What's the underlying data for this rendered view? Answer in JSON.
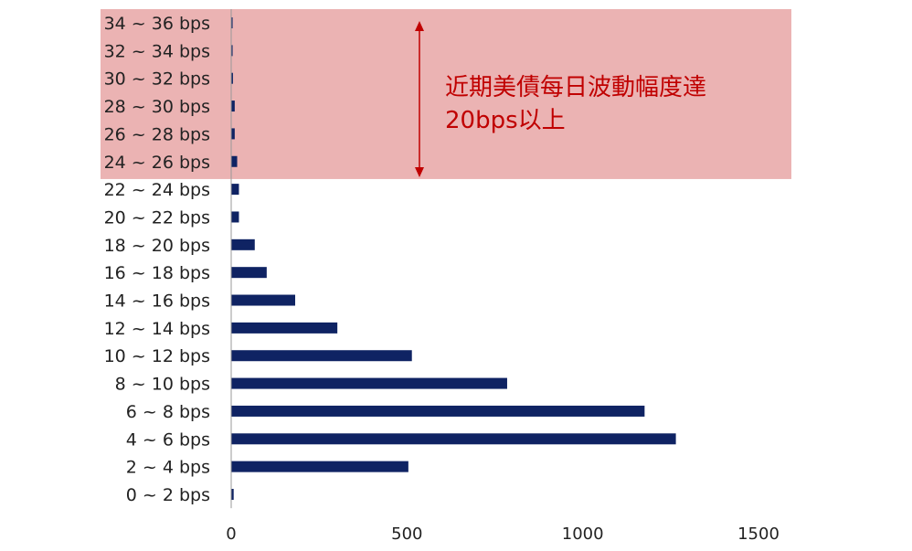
{
  "chart_data": {
    "type": "bar",
    "orientation": "horizontal",
    "categories": [
      "0 ~ 2 bps",
      "2 ~ 4 bps",
      "4 ~ 6 bps",
      "6 ~ 8 bps",
      "8 ~ 10 bps",
      "10 ~ 12 bps",
      "12 ~ 14 bps",
      "14 ~ 16 bps",
      "16 ~ 18 bps",
      "18 ~ 20 bps",
      "20 ~ 22 bps",
      "22 ~ 24 bps",
      "24 ~ 26 bps",
      "26 ~ 28 bps",
      "28 ~ 30 bps",
      "30 ~ 32 bps",
      "32 ~ 34 bps",
      "34 ~ 36 bps"
    ],
    "values": [
      7,
      504,
      1265,
      1176,
      785,
      514,
      302,
      182,
      101,
      67,
      22,
      22,
      17,
      10,
      10,
      5,
      4,
      4
    ],
    "xlim": [
      0,
      1500
    ],
    "xticks": [
      "0",
      "500",
      "1000",
      "1500"
    ],
    "grid": false,
    "colors": {
      "bar": "#0f2363",
      "highlight": "#ebb3b3",
      "annotation": "#c00000"
    },
    "highlight": {
      "from_category": "24 ~ 26 bps",
      "to_category": "34 ~ 36 bps"
    },
    "annotation": {
      "line1": "近期美債每日波動幅度達",
      "line2": "20bps以上"
    }
  }
}
